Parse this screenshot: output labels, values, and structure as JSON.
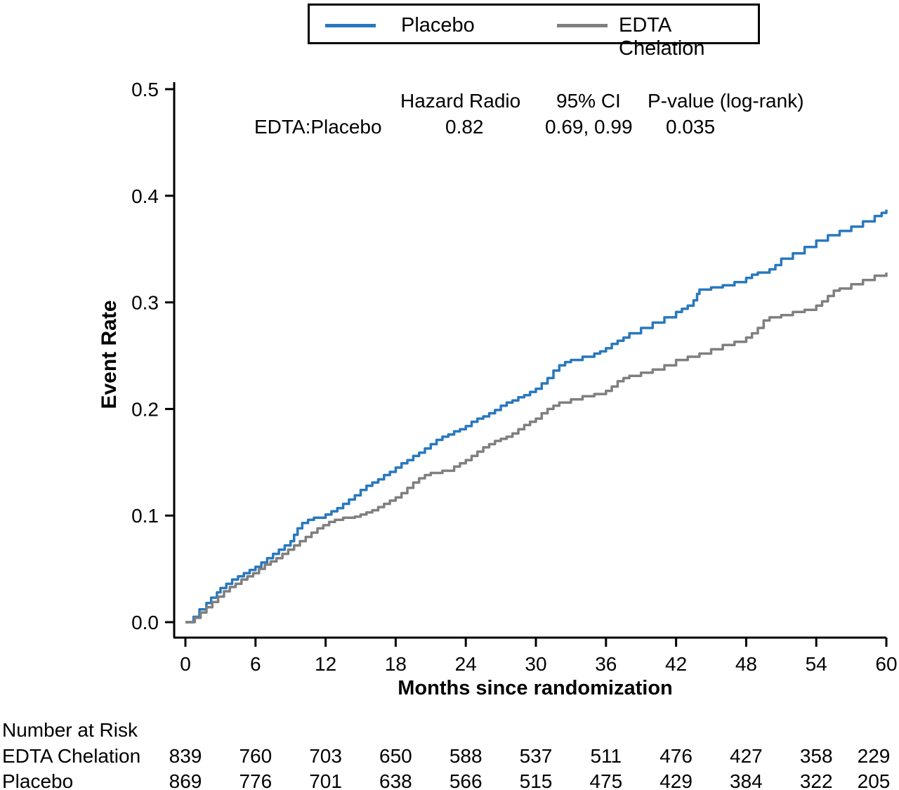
{
  "legend": {
    "items": [
      {
        "label": "Placebo",
        "color": "#2878BE"
      },
      {
        "label": "EDTA Chelation",
        "color": "#7F7F7F"
      }
    ]
  },
  "annotation": {
    "col_hazard": "Hazard Radio",
    "col_ci": "95% CI",
    "col_p": "P-value (log-rank)",
    "row_label": "EDTA:Placebo",
    "hazard_ratio": "0.82",
    "ci": "0.69, 0.99",
    "p_value": "0.035"
  },
  "axes": {
    "y_label": "Event Rate",
    "x_label": "Months since randomization"
  },
  "chart_data": {
    "type": "line",
    "subtype": "kaplan-meier-step",
    "title": "",
    "xlabel": "Months since randomization",
    "ylabel": "Event Rate",
    "xlim": [
      0,
      60
    ],
    "ylim": [
      0.0,
      0.5
    ],
    "xticks": [
      0,
      6,
      12,
      18,
      24,
      30,
      36,
      42,
      48,
      54,
      60
    ],
    "yticks": [
      0.0,
      0.1,
      0.2,
      0.3,
      0.4,
      0.5
    ],
    "grid": false,
    "legend_position": "top-center",
    "series": [
      {
        "name": "Placebo",
        "color": "#2878BE",
        "points": [
          [
            0,
            0
          ],
          [
            0.7,
            0.005
          ],
          [
            1.2,
            0.012
          ],
          [
            1.8,
            0.018
          ],
          [
            2.2,
            0.023
          ],
          [
            2.7,
            0.028
          ],
          [
            3,
            0.032
          ],
          [
            3.5,
            0.036
          ],
          [
            4,
            0.04
          ],
          [
            4.5,
            0.043
          ],
          [
            5,
            0.046
          ],
          [
            5.5,
            0.049
          ],
          [
            6,
            0.052
          ],
          [
            6.5,
            0.056
          ],
          [
            7,
            0.06
          ],
          [
            7.5,
            0.064
          ],
          [
            8,
            0.068
          ],
          [
            8.5,
            0.072
          ],
          [
            9,
            0.076
          ],
          [
            9.3,
            0.082
          ],
          [
            9.6,
            0.088
          ],
          [
            10,
            0.093
          ],
          [
            10.5,
            0.096
          ],
          [
            11,
            0.098
          ],
          [
            12,
            0.101
          ],
          [
            12.5,
            0.104
          ],
          [
            13,
            0.107
          ],
          [
            13.5,
            0.111
          ],
          [
            14,
            0.115
          ],
          [
            14.5,
            0.119
          ],
          [
            15,
            0.124
          ],
          [
            15.5,
            0.128
          ],
          [
            16,
            0.131
          ],
          [
            16.5,
            0.134
          ],
          [
            17,
            0.138
          ],
          [
            17.5,
            0.141
          ],
          [
            18,
            0.145
          ],
          [
            18.5,
            0.149
          ],
          [
            19,
            0.152
          ],
          [
            19.5,
            0.156
          ],
          [
            20,
            0.159
          ],
          [
            20.5,
            0.163
          ],
          [
            21,
            0.167
          ],
          [
            21.5,
            0.171
          ],
          [
            22,
            0.174
          ],
          [
            22.5,
            0.176
          ],
          [
            23,
            0.179
          ],
          [
            23.5,
            0.181
          ],
          [
            24,
            0.184
          ],
          [
            24.5,
            0.188
          ],
          [
            25,
            0.191
          ],
          [
            25.5,
            0.193
          ],
          [
            26,
            0.196
          ],
          [
            26.5,
            0.199
          ],
          [
            27,
            0.203
          ],
          [
            27.5,
            0.206
          ],
          [
            28,
            0.208
          ],
          [
            28.5,
            0.211
          ],
          [
            29,
            0.213
          ],
          [
            29.5,
            0.216
          ],
          [
            30,
            0.219
          ],
          [
            30.5,
            0.224
          ],
          [
            31,
            0.229
          ],
          [
            31.5,
            0.236
          ],
          [
            32,
            0.241
          ],
          [
            32.5,
            0.244
          ],
          [
            33,
            0.246
          ],
          [
            34,
            0.249
          ],
          [
            35,
            0.252
          ],
          [
            35.5,
            0.254
          ],
          [
            36,
            0.257
          ],
          [
            36.5,
            0.261
          ],
          [
            37,
            0.264
          ],
          [
            37.5,
            0.267
          ],
          [
            38,
            0.271
          ],
          [
            39,
            0.276
          ],
          [
            40,
            0.281
          ],
          [
            41,
            0.286
          ],
          [
            42,
            0.291
          ],
          [
            42.5,
            0.294
          ],
          [
            43,
            0.297
          ],
          [
            43.5,
            0.302
          ],
          [
            43.8,
            0.308
          ],
          [
            44,
            0.312
          ],
          [
            45,
            0.314
          ],
          [
            46,
            0.316
          ],
          [
            47,
            0.319
          ],
          [
            48,
            0.323
          ],
          [
            48.5,
            0.326
          ],
          [
            49,
            0.328
          ],
          [
            50,
            0.331
          ],
          [
            50.5,
            0.335
          ],
          [
            51,
            0.341
          ],
          [
            52,
            0.346
          ],
          [
            53,
            0.352
          ],
          [
            54,
            0.358
          ],
          [
            55,
            0.363
          ],
          [
            56,
            0.367
          ],
          [
            57,
            0.371
          ],
          [
            58,
            0.376
          ],
          [
            59,
            0.381
          ],
          [
            59.6,
            0.384
          ],
          [
            60,
            0.387
          ]
        ]
      },
      {
        "name": "EDTA Chelation",
        "color": "#7F7F7F",
        "points": [
          [
            0,
            0
          ],
          [
            0.8,
            0.004
          ],
          [
            1.3,
            0.009
          ],
          [
            1.8,
            0.014
          ],
          [
            2.3,
            0.019
          ],
          [
            2.8,
            0.024
          ],
          [
            3.3,
            0.029
          ],
          [
            3.8,
            0.033
          ],
          [
            4.3,
            0.036
          ],
          [
            4.8,
            0.04
          ],
          [
            5.3,
            0.043
          ],
          [
            5.8,
            0.046
          ],
          [
            6.3,
            0.05
          ],
          [
            6.8,
            0.054
          ],
          [
            7.3,
            0.057
          ],
          [
            7.8,
            0.06
          ],
          [
            8.3,
            0.064
          ],
          [
            8.8,
            0.068
          ],
          [
            9.3,
            0.072
          ],
          [
            9.8,
            0.076
          ],
          [
            10.3,
            0.08
          ],
          [
            10.8,
            0.084
          ],
          [
            11.3,
            0.088
          ],
          [
            11.8,
            0.091
          ],
          [
            12.3,
            0.094
          ],
          [
            12.8,
            0.096
          ],
          [
            13.5,
            0.098
          ],
          [
            14.5,
            0.099
          ],
          [
            15,
            0.101
          ],
          [
            15.5,
            0.103
          ],
          [
            16,
            0.105
          ],
          [
            16.5,
            0.108
          ],
          [
            17,
            0.111
          ],
          [
            17.5,
            0.114
          ],
          [
            18,
            0.117
          ],
          [
            18.5,
            0.121
          ],
          [
            19,
            0.126
          ],
          [
            19.5,
            0.131
          ],
          [
            20,
            0.135
          ],
          [
            20.5,
            0.138
          ],
          [
            21,
            0.14
          ],
          [
            22,
            0.142
          ],
          [
            23,
            0.146
          ],
          [
            23.5,
            0.149
          ],
          [
            24,
            0.152
          ],
          [
            24.5,
            0.156
          ],
          [
            25,
            0.16
          ],
          [
            25.5,
            0.164
          ],
          [
            26,
            0.167
          ],
          [
            26.5,
            0.17
          ],
          [
            27,
            0.172
          ],
          [
            27.5,
            0.174
          ],
          [
            28,
            0.177
          ],
          [
            28.5,
            0.181
          ],
          [
            29,
            0.185
          ],
          [
            29.5,
            0.188
          ],
          [
            30,
            0.191
          ],
          [
            30.5,
            0.196
          ],
          [
            31,
            0.2
          ],
          [
            31.5,
            0.203
          ],
          [
            32,
            0.206
          ],
          [
            33,
            0.209
          ],
          [
            34,
            0.212
          ],
          [
            35,
            0.214
          ],
          [
            36,
            0.217
          ],
          [
            36.5,
            0.221
          ],
          [
            37,
            0.226
          ],
          [
            37.5,
            0.229
          ],
          [
            38,
            0.231
          ],
          [
            39,
            0.234
          ],
          [
            40,
            0.237
          ],
          [
            41,
            0.241
          ],
          [
            42,
            0.246
          ],
          [
            43,
            0.249
          ],
          [
            44,
            0.252
          ],
          [
            45,
            0.256
          ],
          [
            46,
            0.26
          ],
          [
            47,
            0.263
          ],
          [
            48,
            0.267
          ],
          [
            48.5,
            0.271
          ],
          [
            49,
            0.276
          ],
          [
            49.5,
            0.283
          ],
          [
            50,
            0.286
          ],
          [
            51,
            0.288
          ],
          [
            52,
            0.291
          ],
          [
            53,
            0.293
          ],
          [
            54,
            0.297
          ],
          [
            54.5,
            0.301
          ],
          [
            55,
            0.306
          ],
          [
            55.5,
            0.311
          ],
          [
            56,
            0.313
          ],
          [
            57,
            0.317
          ],
          [
            58,
            0.321
          ],
          [
            59,
            0.325
          ],
          [
            60,
            0.328
          ]
        ]
      }
    ],
    "number_at_risk": {
      "title": "Number at Risk",
      "timepoints": [
        0,
        6,
        12,
        18,
        24,
        30,
        36,
        42,
        48,
        54,
        60
      ],
      "rows": [
        {
          "label": "EDTA Chelation",
          "values": [
            839,
            760,
            703,
            650,
            588,
            537,
            511,
            476,
            427,
            358,
            229
          ]
        },
        {
          "label": "Placebo",
          "values": [
            869,
            776,
            701,
            638,
            566,
            515,
            475,
            429,
            384,
            322,
            205
          ]
        }
      ]
    }
  }
}
